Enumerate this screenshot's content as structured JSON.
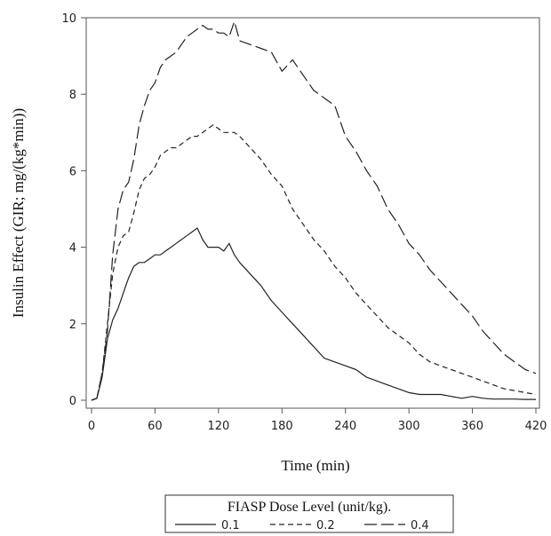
{
  "chart_data": {
    "type": "line",
    "xlabel": "Time (min)",
    "ylabel": "Insulin Effect (GIR; mg/(kg*min))",
    "xlim": [
      0,
      420
    ],
    "ylim": [
      0,
      10
    ],
    "xticks": [
      0,
      60,
      120,
      180,
      240,
      300,
      360,
      420
    ],
    "yticks": [
      0,
      2,
      4,
      6,
      8,
      10
    ],
    "grid": false,
    "legend": {
      "title": "FIASP Dose Level (unit/kg).",
      "placement": "bottom-center"
    },
    "x": [
      0,
      5,
      10,
      15,
      20,
      25,
      30,
      35,
      40,
      45,
      50,
      55,
      60,
      65,
      70,
      75,
      80,
      85,
      90,
      95,
      100,
      105,
      110,
      115,
      120,
      125,
      130,
      135,
      140,
      150,
      160,
      170,
      180,
      190,
      200,
      210,
      220,
      230,
      240,
      250,
      260,
      270,
      280,
      290,
      300,
      310,
      320,
      330,
      340,
      350,
      360,
      370,
      380,
      390,
      400,
      410,
      420
    ],
    "series": [
      {
        "name": "0.1",
        "dash": "solid",
        "values": [
          0,
          0.05,
          0.6,
          1.6,
          2.1,
          2.4,
          2.8,
          3.2,
          3.5,
          3.6,
          3.6,
          3.7,
          3.8,
          3.8,
          3.9,
          4.0,
          4.1,
          4.2,
          4.3,
          4.4,
          4.5,
          4.2,
          4.0,
          4.0,
          4.0,
          3.9,
          4.1,
          3.8,
          3.6,
          3.3,
          3.0,
          2.6,
          2.3,
          2.0,
          1.7,
          1.4,
          1.1,
          1.0,
          0.9,
          0.8,
          0.6,
          0.5,
          0.4,
          0.3,
          0.2,
          0.15,
          0.15,
          0.15,
          0.1,
          0.05,
          0.1,
          0.05,
          0.03,
          0.03,
          0.03,
          0.02,
          0.02
        ]
      },
      {
        "name": "0.2",
        "dash": "dashed",
        "values": [
          0,
          0.05,
          0.7,
          2.0,
          3.3,
          4.0,
          4.3,
          4.4,
          4.9,
          5.5,
          5.8,
          5.9,
          6.1,
          6.4,
          6.5,
          6.6,
          6.6,
          6.7,
          6.8,
          6.9,
          6.9,
          7.0,
          7.1,
          7.2,
          7.1,
          7.0,
          7.0,
          7.0,
          6.9,
          6.6,
          6.3,
          5.9,
          5.6,
          5.0,
          4.6,
          4.2,
          3.9,
          3.5,
          3.2,
          2.8,
          2.5,
          2.2,
          1.9,
          1.7,
          1.5,
          1.2,
          1.0,
          0.9,
          0.8,
          0.7,
          0.6,
          0.5,
          0.4,
          0.3,
          0.25,
          0.2,
          0.15
        ]
      },
      {
        "name": "0.4",
        "dash": "longdash",
        "values": [
          0,
          0.05,
          0.7,
          1.8,
          3.8,
          5.0,
          5.5,
          5.7,
          6.3,
          7.2,
          7.7,
          8.1,
          8.3,
          8.7,
          8.9,
          9.0,
          9.1,
          9.3,
          9.5,
          9.6,
          9.7,
          9.8,
          9.7,
          9.7,
          9.6,
          9.6,
          9.5,
          9.9,
          9.4,
          9.3,
          9.2,
          9.1,
          8.6,
          8.9,
          8.5,
          8.1,
          7.9,
          7.7,
          6.9,
          6.5,
          6.0,
          5.6,
          5.0,
          4.6,
          4.1,
          3.8,
          3.4,
          3.1,
          2.8,
          2.5,
          2.2,
          1.8,
          1.5,
          1.2,
          1.0,
          0.8,
          0.7
        ]
      }
    ]
  }
}
